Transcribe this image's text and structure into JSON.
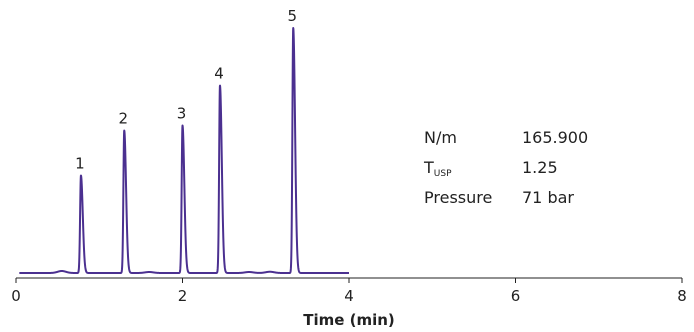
{
  "chart_data": {
    "type": "line",
    "xlabel": "Time (min)",
    "ylabel": "",
    "xlim": [
      0,
      8
    ],
    "xticks": [
      0,
      2,
      4,
      6,
      8
    ],
    "ylim": [
      0,
      1.0
    ],
    "grid": false,
    "baseline": 0.02,
    "series": [
      {
        "color": "#4b3090",
        "x_end": 4.0,
        "peaks": [
          {
            "label": "1",
            "rt": 0.78,
            "height": 0.39
          },
          {
            "label": "2",
            "rt": 1.3,
            "height": 0.57
          },
          {
            "label": "3",
            "rt": 2.0,
            "height": 0.59
          },
          {
            "label": "4",
            "rt": 2.45,
            "height": 0.75
          },
          {
            "label": "5",
            "rt": 3.33,
            "height": 0.98
          }
        ],
        "noise": [
          {
            "x": 0.55,
            "h": 0.008
          },
          {
            "x": 1.6,
            "h": 0.004
          },
          {
            "x": 2.8,
            "h": 0.004
          },
          {
            "x": 3.05,
            "h": 0.005
          }
        ]
      }
    ]
  },
  "info_table": {
    "rows": [
      {
        "label": "N/m",
        "label_sub": "",
        "value": "165.900"
      },
      {
        "label": "T",
        "label_sub": "USP",
        "value": "1.25"
      },
      {
        "label": "Pressure",
        "label_sub": "",
        "value": "71 bar"
      }
    ]
  }
}
